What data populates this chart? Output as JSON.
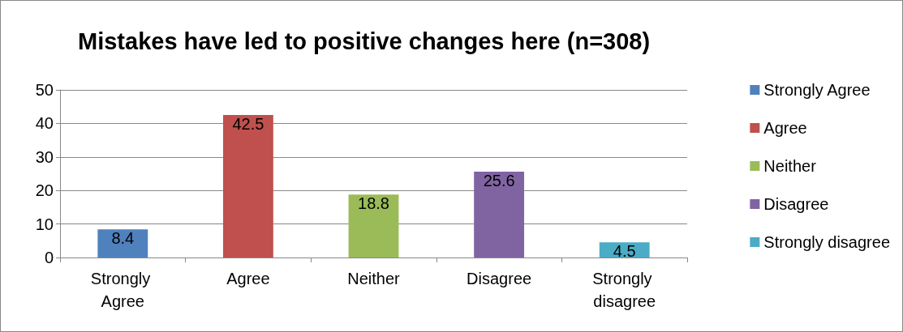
{
  "chart_data": {
    "type": "bar",
    "title": "Mistakes have led to positive changes here (n=308)",
    "categories": [
      "Strongly Agree",
      "Agree",
      "Neither",
      "Disagree",
      "Strongly disagree"
    ],
    "series": [
      {
        "name": "Strongly Agree",
        "color": "#4f81bd",
        "values": [
          8.4,
          null,
          null,
          null,
          null
        ]
      },
      {
        "name": "Agree",
        "color": "#c0504d",
        "values": [
          null,
          42.5,
          null,
          null,
          null
        ]
      },
      {
        "name": "Neither",
        "color": "#9bbb59",
        "values": [
          null,
          null,
          18.8,
          null,
          null
        ]
      },
      {
        "name": "Disagree",
        "color": "#8064a2",
        "values": [
          null,
          null,
          null,
          25.6,
          null
        ]
      },
      {
        "name": "Strongly disagree",
        "color": "#4bacc6",
        "values": [
          null,
          null,
          null,
          null,
          4.5
        ]
      }
    ],
    "ylim": [
      0,
      50
    ],
    "yticks": [
      0,
      10,
      20,
      30,
      40,
      50
    ],
    "grid": "y",
    "legend": "right",
    "data_labels": true
  }
}
